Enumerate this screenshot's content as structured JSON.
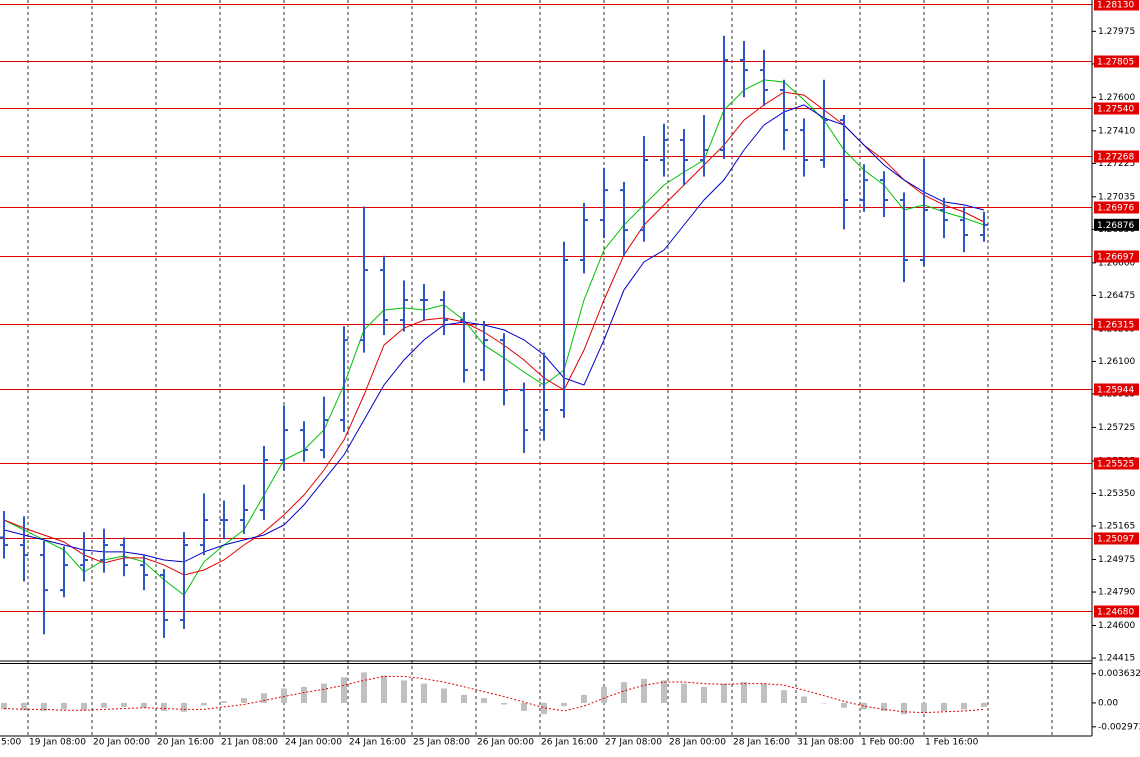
{
  "chart_data": {
    "type": "ohlc",
    "bar_color": "#2f56c6",
    "xlim": [
      -0.2,
      54.4
    ],
    "xticks": [
      {
        "value": -0.2,
        "label": "5:00"
      },
      {
        "value": 1.2,
        "label": "19 Jan 08:00"
      },
      {
        "value": 4.4,
        "label": "20 Jan 00:00"
      },
      {
        "value": 7.6,
        "label": "20 Jan 16:00"
      },
      {
        "value": 10.8,
        "label": "21 Jan 08:00"
      },
      {
        "value": 14,
        "label": "24 Jan 00:00"
      },
      {
        "value": 17.2,
        "label": "24 Jan 16:00"
      },
      {
        "value": 20.4,
        "label": "25 Jan 08:00"
      },
      {
        "value": 23.6,
        "label": "26 Jan 00:00"
      },
      {
        "value": 26.8,
        "label": "26 Jan 16:00"
      },
      {
        "value": 30,
        "label": "27 Jan 08:00"
      },
      {
        "value": 33.2,
        "label": "28 Jan 00:00"
      },
      {
        "value": 36.4,
        "label": "28 Jan 16:00"
      },
      {
        "value": 39.6,
        "label": "31 Jan 08:00"
      },
      {
        "value": 42.8,
        "label": "1 Feb 00:00"
      },
      {
        "value": 46,
        "label": "1 Feb 16:00"
      },
      {
        "value": 49.2,
        "label": null
      },
      {
        "value": 52.4,
        "label": null
      }
    ],
    "ylim": [
      1.24404,
      1.28153
    ],
    "yticks": [
      1.27975,
      {
        "value": 1.2779,
        "label": "1.27790"
      },
      {
        "value": 1.276,
        "label": "1.27600"
      },
      {
        "value": 1.2741,
        "label": "1.27410"
      },
      1.27225,
      1.27035,
      {
        "value": 1.2685,
        "label": "1.26850"
      },
      {
        "value": 1.2666,
        "label": "1.26660"
      },
      1.26475,
      1.26285,
      {
        "value": 1.261,
        "label": "1.26100"
      },
      1.25915,
      1.25725,
      1.25535,
      {
        "value": 1.2535,
        "label": "1.25350"
      },
      1.25165,
      1.24975,
      {
        "value": 1.2479,
        "label": "1.24790"
      },
      {
        "value": 1.246,
        "label": "1.24600"
      },
      1.24415
    ],
    "open": [
      1.251,
      1.25057,
      1.25,
      1.24801,
      1.24943,
      1.24972,
      1.25057,
      1.24943,
      1.24887,
      1.24631,
      1.25057,
      1.25199,
      1.25199,
      1.25256,
      1.2554,
      1.2571,
      1.25597,
      1.25767,
      1.26221,
      1.26619,
      1.26335,
      1.26449,
      1.26449,
      1.26335,
      1.26051,
      1.26221,
      1.25937,
      1.2571,
      1.25824,
      1.26676,
      1.26903,
      1.27073,
      1.26846,
      1.27244,
      1.27358,
      1.27244,
      1.27301,
      1.27812,
      1.27755,
      1.27642,
      1.27414,
      1.27244,
      1.27471,
      1.27017,
      1.2713,
      1.27017,
      1.26676,
      1.2696,
      1.26903,
      1.26818
    ],
    "high": [
      1.2525,
      1.2522,
      1.2508,
      1.2505,
      1.2513,
      1.2515,
      1.251,
      1.25,
      1.2492,
      1.2513,
      1.2535,
      1.2531,
      1.254,
      1.2562,
      1.2585,
      1.2576,
      1.259,
      1.263,
      1.2698,
      1.267,
      1.2656,
      1.2654,
      1.265,
      1.2638,
      1.2633,
      1.2626,
      1.2598,
      1.2615,
      1.2678,
      1.27,
      1.272,
      1.2712,
      1.2738,
      1.2745,
      1.2742,
      1.275,
      1.2795,
      1.2792,
      1.2787,
      1.277,
      1.2748,
      1.277,
      1.275,
      1.2722,
      1.2718,
      1.2706,
      1.2725,
      1.2703,
      1.2698,
      1.2695
    ],
    "low": [
      1.2498,
      1.2485,
      1.2455,
      1.2476,
      1.2485,
      1.249,
      1.2488,
      1.248,
      1.2453,
      1.2458,
      1.25,
      1.2509,
      1.2512,
      1.252,
      1.2548,
      1.2553,
      1.2555,
      1.257,
      1.2615,
      1.2625,
      1.2627,
      1.2633,
      1.2625,
      1.2598,
      1.2599,
      1.2585,
      1.2558,
      1.2565,
      1.2578,
      1.266,
      1.268,
      1.267,
      1.2678,
      1.2715,
      1.271,
      1.2715,
      1.2725,
      1.276,
      1.2755,
      1.273,
      1.2715,
      1.272,
      1.2685,
      1.2695,
      1.2692,
      1.2655,
      1.2664,
      1.268,
      1.2672,
      1.2678
    ],
    "close": [
      1.25057,
      1.25,
      1.24801,
      1.24943,
      1.24972,
      1.25057,
      1.24943,
      1.24887,
      1.24631,
      1.25057,
      1.25199,
      1.25199,
      1.25256,
      1.2554,
      1.2571,
      1.25597,
      1.25767,
      1.26221,
      1.26619,
      1.26335,
      1.26449,
      1.26449,
      1.26335,
      1.26051,
      1.26221,
      1.25937,
      1.2571,
      1.25824,
      1.26676,
      1.26903,
      1.27073,
      1.26846,
      1.27244,
      1.27358,
      1.27244,
      1.27301,
      1.27812,
      1.27755,
      1.27642,
      1.27414,
      1.27244,
      1.27471,
      1.27017,
      1.2713,
      1.27017,
      1.26676,
      1.2696,
      1.26903,
      1.26818,
      1.26876
    ],
    "moving_averages": [
      {
        "color": "#00c000",
        "values": [
          1.25199,
          1.25143,
          1.25086,
          1.25029,
          1.24904,
          1.24972,
          1.24995,
          1.24961,
          1.24859,
          1.24773,
          1.24961,
          1.25057,
          1.25143,
          1.25341,
          1.2554,
          1.25597,
          1.25711,
          1.25966,
          1.26279,
          1.26392,
          1.26404,
          1.26392,
          1.26421,
          1.26335,
          1.26193,
          1.2612,
          1.2604,
          1.25966,
          1.26051,
          1.26449,
          1.26733,
          1.26875,
          1.26989,
          1.27102,
          1.27176,
          1.27244,
          1.27528,
          1.27642,
          1.27699,
          1.27687,
          1.27585,
          1.27471,
          1.27301,
          1.27187,
          1.27102,
          1.2696,
          1.26989,
          1.26949,
          1.26915,
          1.26875
        ]
      },
      {
        "color": "#e00000",
        "values": [
          1.25199,
          1.25154,
          1.25114,
          1.25074,
          1.25001,
          1.24955,
          1.24984,
          1.24984,
          1.24944,
          1.24887,
          1.24915,
          1.24972,
          1.25057,
          1.25131,
          1.25228,
          1.25341,
          1.25483,
          1.25654,
          1.25909,
          1.26193,
          1.2629,
          1.26335,
          1.26347,
          1.26324,
          1.26267,
          1.26193,
          1.26108,
          1.26006,
          1.25938,
          1.26165,
          1.26449,
          1.26705,
          1.26875,
          1.26989,
          1.27102,
          1.27216,
          1.27329,
          1.27471,
          1.27557,
          1.2763,
          1.27613,
          1.27528,
          1.27443,
          1.27329,
          1.27244,
          1.27131,
          1.27045,
          1.26989,
          1.26949,
          1.26892
        ]
      },
      {
        "color": "#0000c8",
        "values": [
          1.25143,
          1.25114,
          1.25086,
          1.25057,
          1.25029,
          1.25018,
          1.25018,
          1.25001,
          1.24972,
          1.24961,
          1.25018,
          1.25057,
          1.25086,
          1.25114,
          1.25171,
          1.25285,
          1.25427,
          1.25569,
          1.25767,
          1.25966,
          1.26108,
          1.26222,
          1.26307,
          1.26324,
          1.26307,
          1.26279,
          1.26222,
          1.26137,
          1.26006,
          1.25966,
          1.26222,
          1.26506,
          1.26665,
          1.26733,
          1.26875,
          1.27017,
          1.27131,
          1.27301,
          1.27443,
          1.27517,
          1.27557,
          1.27483,
          1.27443,
          1.27329,
          1.27216,
          1.27131,
          1.27062,
          1.27006,
          1.26989,
          1.2696
        ]
      }
    ],
    "levels": [
      {
        "value": 1.2813,
        "label": "1.28130"
      },
      1.27805,
      {
        "value": 1.2754,
        "label": "1.27540"
      },
      1.27268,
      1.26976,
      1.26697,
      1.26315,
      1.25944,
      1.25525,
      1.25097,
      {
        "value": 1.2468,
        "label": "1.24680"
      }
    ],
    "level_color": "#e00000",
    "current_price": 1.26876,
    "oscillator": {
      "type": "histogram",
      "color": "#c0c0c0",
      "signal_color": "#e00000",
      "ylim": [
        -0.004116,
        0.004843
      ],
      "yticks": [
        0.003632,
        {
          "value": 0,
          "label": "0.00"
        },
        -0.002973
      ],
      "values": [
        -0.0008,
        -0.0009,
        -0.001,
        -0.0008,
        -0.0009,
        -0.0006,
        -0.0005,
        -0.0006,
        -0.001,
        -0.0011,
        -0.0003,
        0.0002,
        0.0006,
        0.0012,
        0.0018,
        0.002,
        0.0024,
        0.0032,
        0.0038,
        0.0034,
        0.0028,
        0.0024,
        0.0018,
        0.001,
        0.0006,
        -0.0002,
        -0.001,
        -0.0014,
        -0.0004,
        0.001,
        0.002,
        0.0026,
        0.003,
        0.0028,
        0.0024,
        0.002,
        0.0024,
        0.0026,
        0.0024,
        0.0016,
        0.0008,
        0.0,
        -0.0006,
        -0.0008,
        -0.001,
        -0.0014,
        -0.0012,
        -0.001,
        -0.0008,
        -0.0005
      ],
      "signal": [
        -0.0007,
        -0.0008,
        -0.0008,
        -0.0009,
        -0.0009,
        -0.0008,
        -0.0007,
        -0.0006,
        -0.0007,
        -0.0008,
        -0.0008,
        -0.0005,
        -0.0002,
        0.0003,
        0.0008,
        0.0013,
        0.0017,
        0.0022,
        0.0028,
        0.0033,
        0.0033,
        0.003,
        0.0026,
        0.002,
        0.0014,
        0.0008,
        0.0001,
        -0.0006,
        -0.001,
        -0.0004,
        0.0006,
        0.0015,
        0.0022,
        0.0026,
        0.0026,
        0.0024,
        0.0023,
        0.0024,
        0.0024,
        0.0022,
        0.0016,
        0.0009,
        0.0002,
        -0.0004,
        -0.0008,
        -0.0011,
        -0.0012,
        -0.0011,
        -0.001,
        -0.0008
      ]
    }
  }
}
